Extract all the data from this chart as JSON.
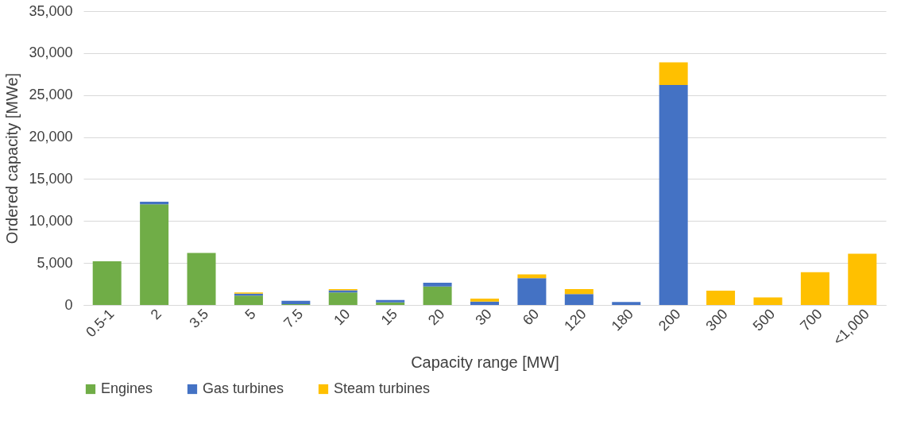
{
  "chart_data": {
    "type": "bar",
    "stacked": true,
    "xlabel": "Capacity range [MW]",
    "ylabel": "Ordered capacity [MWe]",
    "categories": [
      "0.5-1",
      "2",
      "3.5",
      "5",
      "7.5",
      "10",
      "15",
      "20",
      "30",
      "60",
      "120",
      "180",
      "200",
      "300",
      "500",
      "700",
      "<1,000"
    ],
    "series": [
      {
        "name": "Engines",
        "color": "#70ad47",
        "values": [
          5200,
          12000,
          6200,
          1100,
          100,
          1500,
          300,
          2200,
          0,
          0,
          0,
          0,
          0,
          0,
          0,
          0,
          0
        ]
      },
      {
        "name": "Gas turbines",
        "color": "#4472c4",
        "values": [
          0,
          300,
          0,
          250,
          400,
          250,
          300,
          450,
          400,
          3200,
          1300,
          350,
          26200,
          0,
          0,
          0,
          0
        ]
      },
      {
        "name": "Steam turbines",
        "color": "#ffc000",
        "values": [
          0,
          0,
          0,
          150,
          0,
          150,
          0,
          0,
          350,
          450,
          600,
          0,
          2700,
          1700,
          900,
          3900,
          6100
        ]
      }
    ],
    "ylim": [
      0,
      35000
    ],
    "yticks": [
      {
        "value": 0,
        "label": "0"
      },
      {
        "value": 5000,
        "label": "5,000"
      },
      {
        "value": 10000,
        "label": "10,000"
      },
      {
        "value": 15000,
        "label": "15,000"
      },
      {
        "value": 20000,
        "label": "20,000"
      },
      {
        "value": 25000,
        "label": "25,000"
      },
      {
        "value": 30000,
        "label": "30,000"
      },
      {
        "value": 35000,
        "label": "35,000"
      }
    ],
    "grid": "y",
    "legend": "bottom"
  }
}
